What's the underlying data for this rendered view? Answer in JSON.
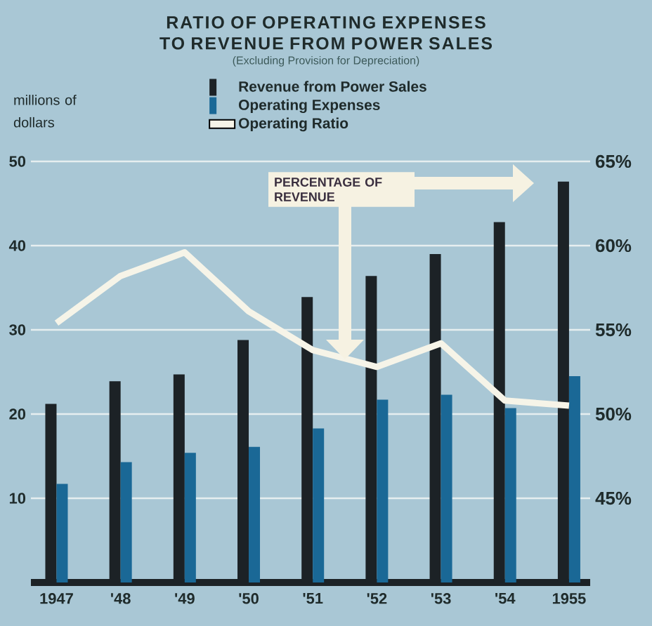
{
  "chart_data": {
    "type": "bar",
    "title": "RATIO OF OPERATING EXPENSES TO REVENUE FROM POWER SALES",
    "subtitle": "(Excluding Provision for Depreciation)",
    "ylabel": "millions of dollars",
    "categories": [
      "1947",
      "'48",
      "'49",
      "'50",
      "'51",
      "'52",
      "'53",
      "'54",
      "1955"
    ],
    "series": [
      {
        "name": "Revenue from Power Sales",
        "color": "#1c2226",
        "values": [
          21.2,
          23.9,
          24.7,
          28.8,
          33.9,
          36.4,
          39.0,
          42.8,
          47.6
        ]
      },
      {
        "name": "Operating Expenses",
        "color": "#1a6896",
        "values": [
          11.7,
          14.3,
          15.4,
          16.1,
          18.3,
          21.7,
          22.3,
          20.7,
          24.5
        ]
      },
      {
        "name": "Operating Ratio",
        "type": "line",
        "axis": "y2",
        "color": "#f6f4e8",
        "values": [
          55.4,
          58.2,
          59.6,
          56.1,
          53.8,
          52.8,
          54.2,
          50.8,
          50.5
        ]
      }
    ],
    "ylim": [
      0,
      50
    ],
    "yticks": [
      10,
      20,
      30,
      40,
      50
    ],
    "y2lim": [
      40,
      65
    ],
    "y2ticks": [
      {
        "value": 45,
        "label": "45%"
      },
      {
        "value": 50,
        "label": "50%"
      },
      {
        "value": 55,
        "label": "55%"
      },
      {
        "value": 60,
        "label": "60%"
      },
      {
        "value": 65,
        "label": "65%"
      }
    ],
    "grid": "y",
    "legend": "top",
    "annotations": [
      "PERCENTAGE OF REVENUE"
    ]
  }
}
